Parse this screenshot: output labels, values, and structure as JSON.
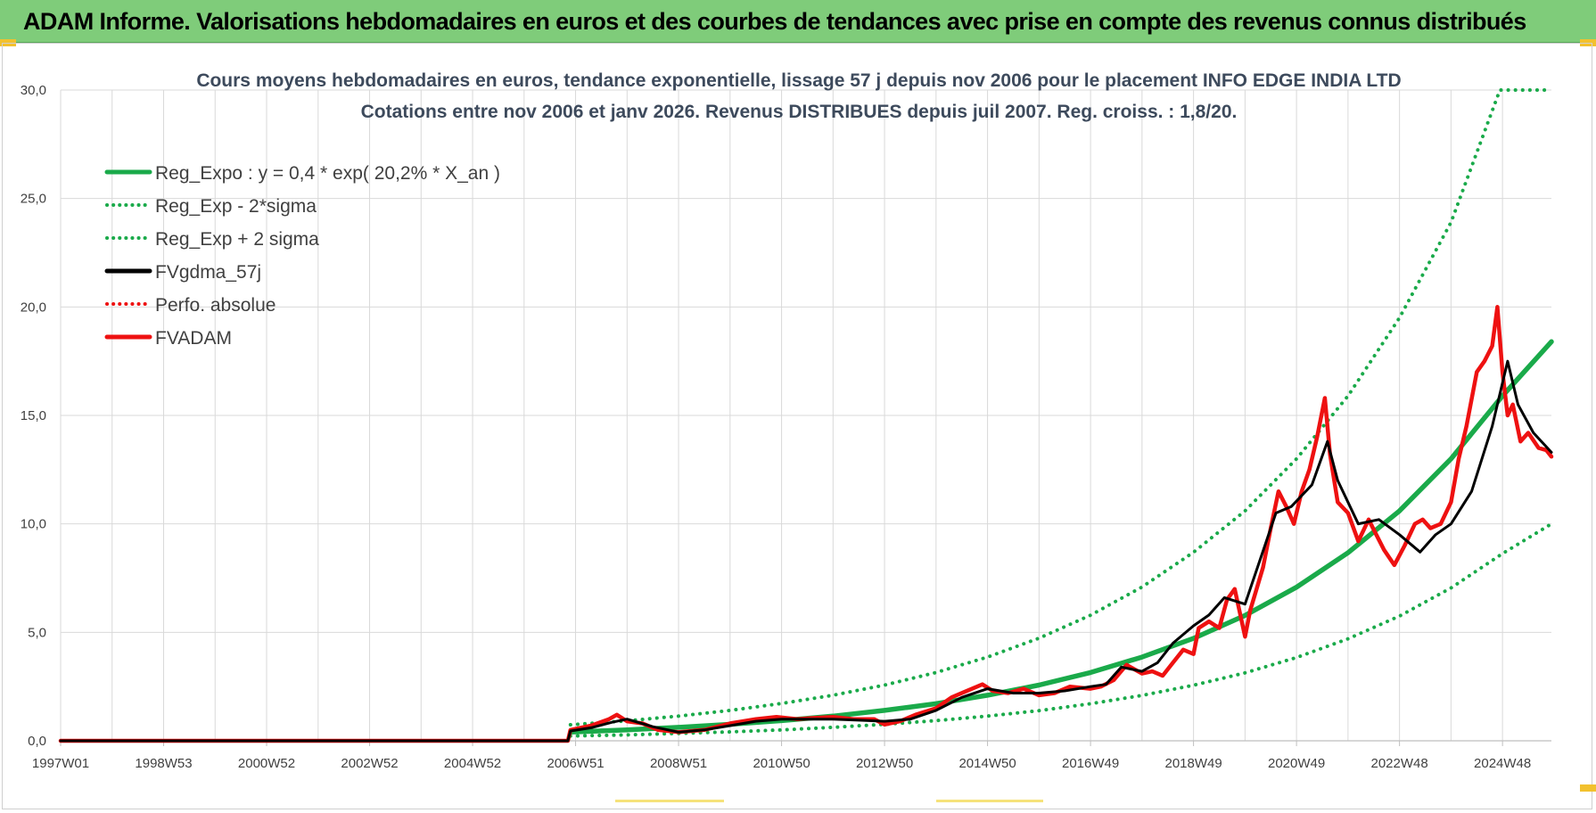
{
  "header": {
    "title": "ADAM Informe. Valorisations hebdomadaires en euros et des courbes de tendances avec prise en compte des revenus connus distribués"
  },
  "colors": {
    "banner": "#7fcc7a",
    "trend_green": "#1aaa4a",
    "price_red": "#ee1111",
    "smooth_black": "#000000",
    "grid": "#d9d9d9"
  },
  "chart_data": {
    "type": "line",
    "title": "Cours moyens hebdomadaires en euros, tendance exponentielle, lissage 57 j depuis nov 2006  pour le placement INFO EDGE INDIA LTD",
    "subtitle": "Cotations entre nov 2006 et janv 2026. Revenus DISTRIBUES depuis juil 2007. Reg. croiss. : 1,8/20.",
    "xlabel": "",
    "ylabel": "",
    "x_tick_labels": [
      "1997W01",
      "1998W53",
      "2000W52",
      "2002W52",
      "2004W52",
      "2006W51",
      "2008W51",
      "2010W50",
      "2012W50",
      "2014W50",
      "2016W49",
      "2018W49",
      "2020W49",
      "2022W48",
      "2024W48"
    ],
    "x_tick_years": [
      1997.0,
      1999.0,
      2001.0,
      2003.0,
      2005.0,
      2007.0,
      2009.0,
      2011.0,
      2013.0,
      2015.0,
      2017.0,
      2019.0,
      2021.0,
      2023.0,
      2025.0
    ],
    "xlim": [
      1997.0,
      2025.95
    ],
    "y_tick_labels": [
      "0,0",
      "5,0",
      "10,0",
      "15,0",
      "20,0",
      "25,0",
      "30,0"
    ],
    "ylim": [
      0,
      30
    ],
    "legend": [
      "Reg_Expo : y = 0,4 * exp( 20,2% *  X_an )",
      "Reg_Exp - 2*sigma",
      "Reg_Exp + 2 sigma",
      "FVgdma_57j",
      "Perfo. absolue",
      "FVADAM"
    ],
    "series": [
      {
        "name": "Reg_Expo : y = 0,4 * exp( 20,2% *  X_an )",
        "style": "solid",
        "x": [
          2006.9,
          2008.0,
          2009.0,
          2010.0,
          2011.0,
          2012.0,
          2013.0,
          2014.0,
          2015.0,
          2016.0,
          2017.0,
          2018.0,
          2019.0,
          2020.0,
          2021.0,
          2022.0,
          2023.0,
          2024.0,
          2025.0,
          2025.95
        ],
        "values": [
          0.4,
          0.5,
          0.62,
          0.76,
          0.93,
          1.14,
          1.4,
          1.71,
          2.1,
          2.57,
          3.15,
          3.86,
          4.72,
          5.78,
          7.08,
          8.67,
          10.6,
          13.0,
          15.9,
          18.4
        ]
      },
      {
        "name": "Reg_Exp - 2*sigma",
        "style": "dotted",
        "x": [
          2006.9,
          2008.0,
          2009.0,
          2010.0,
          2011.0,
          2012.0,
          2013.0,
          2014.0,
          2015.0,
          2016.0,
          2017.0,
          2018.0,
          2019.0,
          2020.0,
          2021.0,
          2022.0,
          2023.0,
          2024.0,
          2025.0,
          2025.95
        ],
        "values": [
          0.22,
          0.27,
          0.34,
          0.41,
          0.5,
          0.62,
          0.76,
          0.93,
          1.14,
          1.39,
          1.71,
          2.09,
          2.56,
          3.13,
          3.84,
          4.7,
          5.75,
          7.05,
          8.63,
          10.0
        ]
      },
      {
        "name": "Reg_Exp + 2 sigma",
        "style": "dotted",
        "x": [
          2006.9,
          2008.0,
          2009.0,
          2010.0,
          2011.0,
          2012.0,
          2013.0,
          2014.0,
          2015.0,
          2016.0,
          2017.0,
          2018.0,
          2019.0,
          2020.0,
          2021.0,
          2022.0,
          2023.0,
          2024.0,
          2024.95,
          2025.95
        ],
        "values": [
          0.74,
          0.92,
          1.14,
          1.4,
          1.72,
          2.1,
          2.57,
          3.15,
          3.86,
          4.73,
          5.79,
          7.09,
          8.69,
          10.6,
          13.0,
          15.9,
          19.5,
          23.9,
          30.0,
          30.0
        ]
      },
      {
        "name": "FVgdma_57j",
        "style": "solid",
        "x": [
          1997.0,
          2006.85,
          2006.9,
          2007.3,
          2007.7,
          2008.0,
          2008.5,
          2009.0,
          2009.5,
          2010.0,
          2010.5,
          2011.0,
          2011.5,
          2012.0,
          2012.5,
          2013.0,
          2013.5,
          2014.0,
          2014.5,
          2015.0,
          2015.5,
          2016.0,
          2016.5,
          2017.0,
          2017.3,
          2017.6,
          2018.0,
          2018.3,
          2018.6,
          2019.0,
          2019.3,
          2019.6,
          2020.0,
          2020.3,
          2020.6,
          2020.9,
          2021.3,
          2021.6,
          2021.8,
          2022.2,
          2022.6,
          2023.0,
          2023.4,
          2023.7,
          2024.0,
          2024.4,
          2024.8,
          2025.1,
          2025.3,
          2025.6,
          2025.95
        ],
        "values": [
          0.0,
          0.0,
          0.45,
          0.6,
          0.85,
          1.0,
          0.65,
          0.4,
          0.5,
          0.7,
          0.9,
          1.0,
          1.0,
          1.0,
          0.95,
          0.9,
          1.0,
          1.4,
          2.0,
          2.4,
          2.2,
          2.2,
          2.3,
          2.5,
          2.6,
          3.4,
          3.2,
          3.6,
          4.5,
          5.3,
          5.8,
          6.6,
          6.3,
          8.4,
          10.5,
          10.8,
          11.8,
          13.8,
          12.0,
          10.0,
          10.2,
          9.5,
          8.7,
          9.5,
          10.0,
          11.5,
          14.5,
          17.5,
          15.5,
          14.2,
          13.3
        ]
      },
      {
        "name": "Perfo. absolue",
        "style": "dotted",
        "x": [],
        "values": []
      },
      {
        "name": "FVADAM",
        "style": "solid",
        "x": [
          1997.0,
          2006.85,
          2006.9,
          2007.3,
          2007.65,
          2007.8,
          2008.0,
          2008.3,
          2008.6,
          2009.0,
          2009.5,
          2010.0,
          2010.5,
          2010.9,
          2011.3,
          2011.6,
          2012.0,
          2012.4,
          2012.8,
          2013.0,
          2013.3,
          2013.6,
          2014.0,
          2014.3,
          2014.6,
          2014.9,
          2015.1,
          2015.4,
          2015.7,
          2016.0,
          2016.3,
          2016.6,
          2017.0,
          2017.2,
          2017.45,
          2017.7,
          2018.0,
          2018.2,
          2018.4,
          2018.6,
          2018.8,
          2019.0,
          2019.1,
          2019.3,
          2019.5,
          2019.65,
          2019.8,
          2020.0,
          2020.1,
          2020.2,
          2020.35,
          2020.5,
          2020.65,
          2020.8,
          2020.95,
          2021.1,
          2021.25,
          2021.4,
          2021.55,
          2021.65,
          2021.8,
          2022.0,
          2022.2,
          2022.4,
          2022.55,
          2022.7,
          2022.9,
          2023.1,
          2023.3,
          2023.45,
          2023.6,
          2023.8,
          2024.0,
          2024.15,
          2024.3,
          2024.5,
          2024.65,
          2024.8,
          2024.9,
          2025.0,
          2025.1,
          2025.2,
          2025.35,
          2025.5,
          2025.7,
          2025.85,
          2025.95
        ],
        "values": [
          0.0,
          0.0,
          0.5,
          0.7,
          1.0,
          1.2,
          0.9,
          0.8,
          0.5,
          0.4,
          0.5,
          0.8,
          1.0,
          1.1,
          1.0,
          1.05,
          1.1,
          1.0,
          1.0,
          0.75,
          0.9,
          1.2,
          1.5,
          2.0,
          2.3,
          2.6,
          2.3,
          2.2,
          2.4,
          2.1,
          2.2,
          2.5,
          2.4,
          2.5,
          2.8,
          3.5,
          3.1,
          3.2,
          3.0,
          3.6,
          4.2,
          4.0,
          5.2,
          5.5,
          5.2,
          6.5,
          7.0,
          4.8,
          6.0,
          6.8,
          8.0,
          9.8,
          11.5,
          10.8,
          10.0,
          11.5,
          12.5,
          14.0,
          15.8,
          13.2,
          11.0,
          10.5,
          9.2,
          10.2,
          9.5,
          8.8,
          8.1,
          9.0,
          10.0,
          10.2,
          9.8,
          10.0,
          11.0,
          13.0,
          14.5,
          17.0,
          17.5,
          18.2,
          20.0,
          17.0,
          15.0,
          15.5,
          13.8,
          14.2,
          13.5,
          13.4,
          13.1
        ]
      }
    ]
  }
}
